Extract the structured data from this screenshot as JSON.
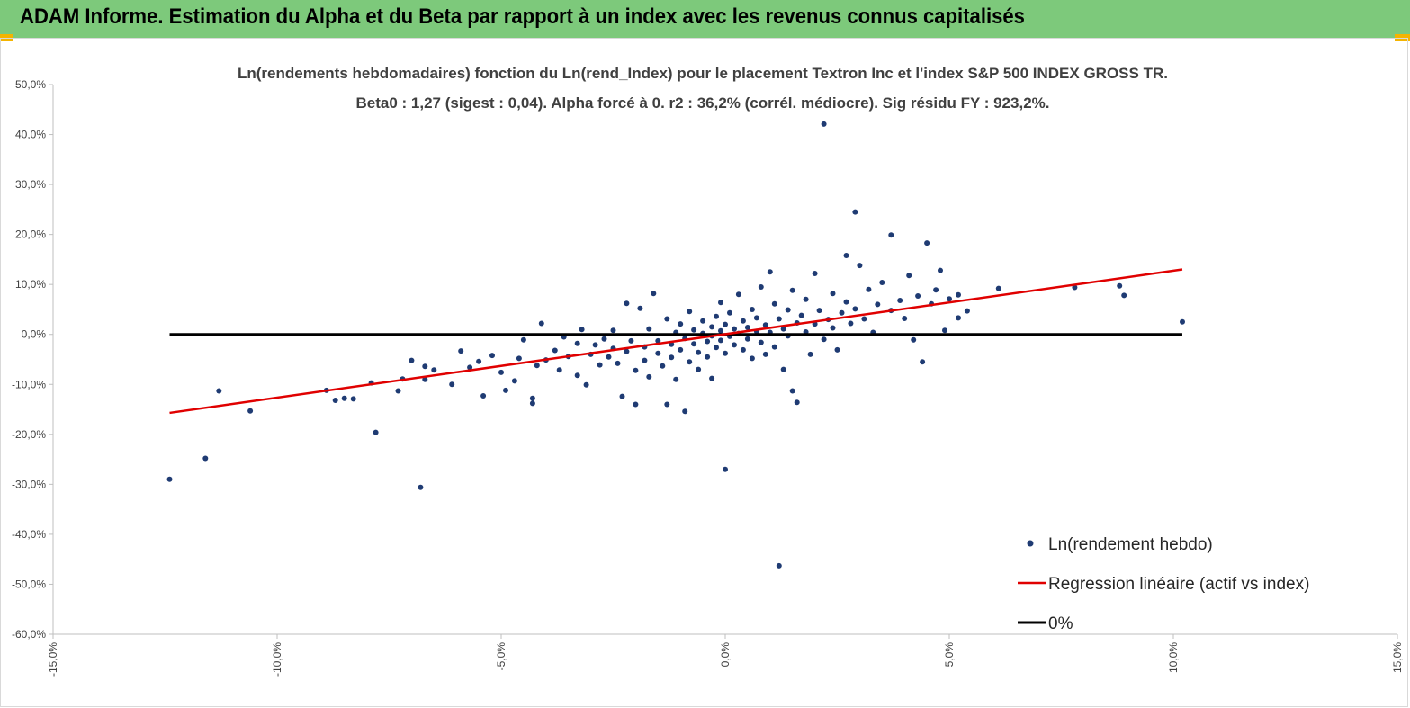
{
  "banner": {
    "title": "ADAM Informe. Estimation du Alpha et du Beta par rapport à un index avec les revenus connus capitalisés"
  },
  "colors": {
    "banner_bg": "#7dc97b",
    "accent_corner": "#f4b400",
    "scatter": "#1f3b73",
    "regression": "#e00000",
    "zero_line": "#000000"
  },
  "chart_data": {
    "type": "scatter",
    "title_line1": "Ln(rendements hebdomadaires) fonction du Ln(rend_Index) pour le placement Textron Inc et l'index S&P 500 INDEX GROSS TR.",
    "title_line2": "Beta0 : 1,27  (sigest : 0,04). Alpha forcé à 0. r2 : 36,2% (corrél. médiocre). Sig résidu FY : 923,2%.",
    "xlim": [
      -0.15,
      0.15
    ],
    "ylim": [
      -0.6,
      0.5
    ],
    "x_ticks": [
      {
        "value": -0.15,
        "label": "-15,0%"
      },
      {
        "value": -0.1,
        "label": "-10,0%"
      },
      {
        "value": -0.05,
        "label": "-5,0%"
      },
      {
        "value": 0.0,
        "label": "0,0%"
      },
      {
        "value": 0.05,
        "label": "5,0%"
      },
      {
        "value": 0.1,
        "label": "10,0%"
      },
      {
        "value": 0.15,
        "label": "15,0%"
      }
    ],
    "y_ticks": [
      {
        "value": 0.5,
        "label": "50,0%"
      },
      {
        "value": 0.4,
        "label": "40,0%"
      },
      {
        "value": 0.3,
        "label": "30,0%"
      },
      {
        "value": 0.2,
        "label": "20,0%"
      },
      {
        "value": 0.1,
        "label": "10,0%"
      },
      {
        "value": 0.0,
        "label": "0,0%"
      },
      {
        "value": -0.1,
        "label": "-10,0%"
      },
      {
        "value": -0.2,
        "label": "-20,0%"
      },
      {
        "value": -0.3,
        "label": "-30,0%"
      },
      {
        "value": -0.4,
        "label": "-40,0%"
      },
      {
        "value": -0.5,
        "label": "-50,0%"
      },
      {
        "value": -0.6,
        "label": "-60,0%"
      }
    ],
    "series": [
      {
        "name": "Ln(rendement hebdo)",
        "kind": "scatter",
        "points": [
          [
            -0.124,
            -0.29
          ],
          [
            -0.116,
            -0.248
          ],
          [
            -0.113,
            -0.113
          ],
          [
            -0.106,
            -0.153
          ],
          [
            -0.089,
            -0.112
          ],
          [
            -0.087,
            -0.132
          ],
          [
            -0.085,
            -0.128
          ],
          [
            -0.083,
            -0.129
          ],
          [
            -0.079,
            -0.097
          ],
          [
            -0.078,
            -0.196
          ],
          [
            -0.073,
            -0.113
          ],
          [
            -0.072,
            -0.089
          ],
          [
            -0.07,
            -0.052
          ],
          [
            -0.068,
            -0.306
          ],
          [
            -0.067,
            -0.064
          ],
          [
            -0.067,
            -0.09
          ],
          [
            -0.065,
            -0.071
          ],
          [
            -0.061,
            -0.1
          ],
          [
            -0.059,
            -0.033
          ],
          [
            -0.057,
            -0.066
          ],
          [
            -0.055,
            -0.054
          ],
          [
            -0.054,
            -0.123
          ],
          [
            -0.052,
            -0.042
          ],
          [
            -0.05,
            -0.076
          ],
          [
            -0.049,
            -0.112
          ],
          [
            -0.047,
            -0.093
          ],
          [
            -0.046,
            -0.048
          ],
          [
            -0.045,
            -0.011
          ],
          [
            -0.043,
            -0.138
          ],
          [
            -0.043,
            -0.128
          ],
          [
            -0.042,
            -0.062
          ],
          [
            -0.041,
            0.022
          ],
          [
            -0.04,
            -0.051
          ],
          [
            -0.038,
            -0.032
          ],
          [
            -0.037,
            -0.071
          ],
          [
            -0.036,
            -0.005
          ],
          [
            -0.035,
            -0.044
          ],
          [
            -0.033,
            -0.018
          ],
          [
            -0.033,
            -0.082
          ],
          [
            -0.032,
            0.01
          ],
          [
            -0.031,
            -0.101
          ],
          [
            -0.03,
            -0.04
          ],
          [
            -0.029,
            -0.021
          ],
          [
            -0.028,
            -0.061
          ],
          [
            -0.027,
            -0.009
          ],
          [
            -0.026,
            -0.045
          ],
          [
            -0.025,
            -0.028
          ],
          [
            -0.025,
            0.008
          ],
          [
            -0.024,
            -0.058
          ],
          [
            -0.023,
            -0.124
          ],
          [
            -0.022,
            -0.034
          ],
          [
            -0.022,
            0.062
          ],
          [
            -0.021,
            -0.013
          ],
          [
            -0.02,
            -0.072
          ],
          [
            -0.02,
            -0.14
          ],
          [
            -0.019,
            0.052
          ],
          [
            -0.018,
            -0.025
          ],
          [
            -0.018,
            -0.052
          ],
          [
            -0.017,
            0.011
          ],
          [
            -0.017,
            -0.085
          ],
          [
            -0.016,
            0.082
          ],
          [
            -0.015,
            -0.038
          ],
          [
            -0.015,
            -0.013
          ],
          [
            -0.014,
            -0.063
          ],
          [
            -0.013,
            -0.14
          ],
          [
            -0.013,
            0.031
          ],
          [
            -0.012,
            -0.02
          ],
          [
            -0.012,
            -0.046
          ],
          [
            -0.011,
            0.004
          ],
          [
            -0.011,
            -0.09
          ],
          [
            -0.01,
            -0.031
          ],
          [
            -0.01,
            0.021
          ],
          [
            -0.009,
            -0.008
          ],
          [
            -0.009,
            -0.154
          ],
          [
            -0.008,
            -0.055
          ],
          [
            -0.008,
            0.046
          ],
          [
            -0.007,
            -0.019
          ],
          [
            -0.007,
            0.009
          ],
          [
            -0.006,
            -0.036
          ],
          [
            -0.006,
            -0.07
          ],
          [
            -0.005,
            0.002
          ],
          [
            -0.005,
            0.027
          ],
          [
            -0.004,
            -0.014
          ],
          [
            -0.004,
            -0.045
          ],
          [
            -0.003,
            0.015
          ],
          [
            -0.003,
            -0.003
          ],
          [
            -0.003,
            -0.088
          ],
          [
            -0.002,
            0.036
          ],
          [
            -0.002,
            -0.026
          ],
          [
            -0.001,
            0.007
          ],
          [
            -0.001,
            -0.012
          ],
          [
            -0.001,
            0.064
          ],
          [
            0.0,
            -0.038
          ],
          [
            0.0,
            0.02
          ],
          [
            0.0,
            -0.27
          ],
          [
            0.001,
            -0.004
          ],
          [
            0.001,
            0.043
          ],
          [
            0.002,
            -0.021
          ],
          [
            0.002,
            0.011
          ],
          [
            0.003,
            0.002
          ],
          [
            0.003,
            0.08
          ],
          [
            0.004,
            -0.031
          ],
          [
            0.004,
            0.027
          ],
          [
            0.005,
            0.014
          ],
          [
            0.005,
            -0.009
          ],
          [
            0.006,
            0.05
          ],
          [
            0.006,
            -0.048
          ],
          [
            0.007,
            0.006
          ],
          [
            0.007,
            0.033
          ],
          [
            0.008,
            -0.016
          ],
          [
            0.008,
            0.095
          ],
          [
            0.009,
            0.019
          ],
          [
            0.009,
            -0.04
          ],
          [
            0.01,
            0.125
          ],
          [
            0.01,
            0.004
          ],
          [
            0.011,
            0.061
          ],
          [
            0.011,
            -0.025
          ],
          [
            0.012,
            0.031
          ],
          [
            0.012,
            -0.463
          ],
          [
            0.013,
            0.011
          ],
          [
            0.013,
            -0.07
          ],
          [
            0.014,
            0.049
          ],
          [
            0.014,
            -0.003
          ],
          [
            0.015,
            0.088
          ],
          [
            0.015,
            -0.113
          ],
          [
            0.016,
            0.023
          ],
          [
            0.016,
            -0.136
          ],
          [
            0.017,
            0.038
          ],
          [
            0.018,
            0.005
          ],
          [
            0.018,
            0.07
          ],
          [
            0.019,
            -0.04
          ],
          [
            0.02,
            0.021
          ],
          [
            0.02,
            0.122
          ],
          [
            0.021,
            0.048
          ],
          [
            0.022,
            -0.01
          ],
          [
            0.022,
            0.421
          ],
          [
            0.023,
            0.03
          ],
          [
            0.024,
            0.082
          ],
          [
            0.024,
            0.013
          ],
          [
            0.025,
            -0.031
          ],
          [
            0.026,
            0.043
          ],
          [
            0.027,
            0.065
          ],
          [
            0.027,
            0.158
          ],
          [
            0.028,
            0.022
          ],
          [
            0.029,
            0.245
          ],
          [
            0.029,
            0.051
          ],
          [
            0.03,
            0.138
          ],
          [
            0.031,
            0.031
          ],
          [
            0.032,
            0.09
          ],
          [
            0.033,
            0.004
          ],
          [
            0.034,
            0.06
          ],
          [
            0.035,
            0.104
          ],
          [
            0.037,
            0.048
          ],
          [
            0.037,
            0.199
          ],
          [
            0.039,
            0.068
          ],
          [
            0.04,
            0.032
          ],
          [
            0.041,
            0.118
          ],
          [
            0.042,
            -0.011
          ],
          [
            0.043,
            0.077
          ],
          [
            0.044,
            -0.055
          ],
          [
            0.045,
            0.183
          ],
          [
            0.046,
            0.061
          ],
          [
            0.047,
            0.089
          ],
          [
            0.048,
            0.128
          ],
          [
            0.049,
            0.008
          ],
          [
            0.05,
            0.071
          ],
          [
            0.052,
            0.033
          ],
          [
            0.052,
            0.079
          ],
          [
            0.054,
            0.047
          ],
          [
            0.061,
            0.092
          ],
          [
            0.078,
            0.094
          ],
          [
            0.088,
            0.097
          ],
          [
            0.089,
            0.078
          ],
          [
            0.102,
            0.025
          ]
        ]
      },
      {
        "name": "Regression linéaire (actif vs index)",
        "kind": "line",
        "points": [
          [
            -0.124,
            -0.157
          ],
          [
            0.102,
            0.13
          ]
        ]
      },
      {
        "name": "0%",
        "kind": "line",
        "points": [
          [
            -0.124,
            0.0
          ],
          [
            0.102,
            0.0
          ]
        ]
      }
    ],
    "legend_position": "bottom-right"
  }
}
